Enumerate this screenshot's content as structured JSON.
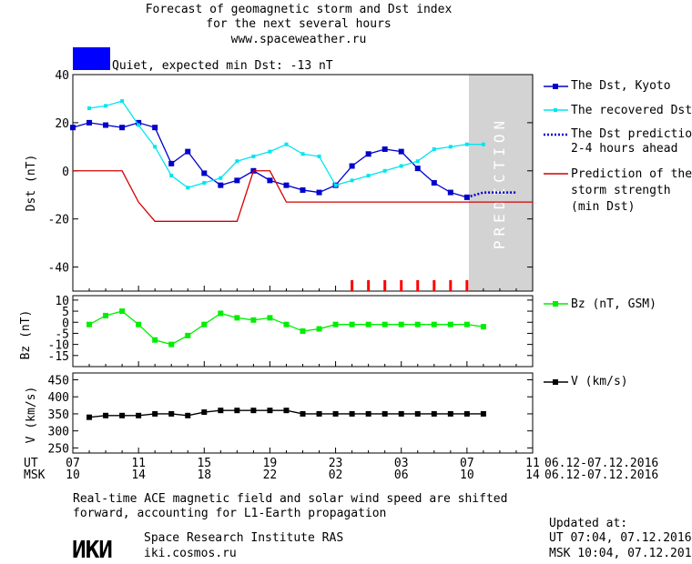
{
  "header": {
    "title_line1": "Forecast of geomagnetic storm and Dst index",
    "title_line2": "for the next several hours",
    "website": "www.spaceweather.ru"
  },
  "status": {
    "color": "#0000ff",
    "text": "Quiet, expected min Dst: -13 nT"
  },
  "prediction_label": "PREDICTION",
  "legend": {
    "dst_kyoto": "The Dst, Kyoto",
    "dst_recovered": "The recovered Dst",
    "dst_prediction_1": "The Dst prediction",
    "dst_prediction_2": "2-4 hours ahead",
    "storm_1": "Prediction of the",
    "storm_2": "storm strength",
    "storm_3": "(min Dst)",
    "bz": "Bz (nT, GSM)",
    "v": "V (km/s)"
  },
  "time_axis": {
    "ut_label": "UT",
    "msk_label": "MSK",
    "ut_ticks": [
      "07",
      "11",
      "15",
      "19",
      "23",
      "03",
      "07",
      "11"
    ],
    "msk_ticks": [
      "10",
      "14",
      "18",
      "22",
      "02",
      "06",
      "10",
      "14"
    ],
    "date_range_ut": "06.12-07.12.2016",
    "date_range_msk": "06.12-07.12.2016"
  },
  "footer": {
    "note_line1": "Real-time ACE magnetic field and solar wind speed are shifted",
    "note_line2": "forward, accounting for L1-Earth propagation",
    "logo_text": "ИКИ",
    "institute": "Space Research Institute RAS",
    "institute_url": "iki.cosmos.ru",
    "updated_label": "Updated at:",
    "updated_ut": "UT  07:04, 07.12.2016",
    "updated_msk": "MSK 10:04, 07.12.2016"
  },
  "chart_data": [
    {
      "type": "line",
      "title": "Forecast of geomagnetic storm and Dst index",
      "ylabel": "Dst (nT)",
      "xlim_hours": [
        0,
        28
      ],
      "ylim": [
        -50,
        40
      ],
      "yticks": [
        40,
        20,
        0,
        -20,
        -40
      ],
      "grid": false,
      "legend_position": "right",
      "prediction_from_hour": 24,
      "colors": {
        "kyoto": "#0000cc",
        "recovered": "#00e5ee",
        "prediction": "#0000cc",
        "storm": "#d40000",
        "marker": "#ff0000"
      },
      "series": [
        {
          "name": "The Dst, Kyoto",
          "x": [
            0,
            1,
            2,
            3,
            4,
            5,
            6,
            7,
            8,
            9,
            10,
            11,
            12,
            13,
            14,
            15,
            16,
            17,
            18,
            19,
            20,
            21,
            22,
            23,
            24
          ],
          "y": [
            18,
            20,
            19,
            18,
            20,
            18,
            3,
            8,
            -1,
            -6,
            -4,
            0,
            -4,
            -6,
            -8,
            -9,
            -6,
            2,
            7,
            9,
            8,
            1,
            -5,
            -9,
            -11
          ]
        },
        {
          "name": "The recovered Dst",
          "x": [
            1,
            2,
            3,
            4,
            5,
            6,
            7,
            8,
            9,
            10,
            11,
            12,
            13,
            14,
            15,
            16,
            17,
            18,
            19,
            20,
            21,
            22,
            23,
            24,
            25
          ],
          "y": [
            26,
            27,
            29,
            19,
            10,
            -2,
            -7,
            -5,
            -3,
            4,
            6,
            8,
            11,
            7,
            6,
            -6,
            -4,
            -2,
            0,
            2,
            4,
            9,
            10,
            11,
            11
          ]
        },
        {
          "name": "The Dst prediction 2-4 hours ahead",
          "x": [
            24,
            25,
            26,
            27
          ],
          "y": [
            -11,
            -9,
            -9,
            -9
          ]
        },
        {
          "name": "Prediction of the storm strength (min Dst)",
          "x": [
            0,
            3,
            4,
            5,
            10,
            11,
            12,
            13,
            28
          ],
          "y": [
            0,
            0,
            -13,
            -21,
            -21,
            0,
            0,
            -13,
            -13
          ]
        }
      ],
      "marker_hours": [
        17,
        18,
        19,
        20,
        21,
        22,
        23,
        24
      ]
    },
    {
      "type": "line",
      "ylabel": "Bz (nT)",
      "ylim": [
        -20,
        12
      ],
      "yticks": [
        10,
        5,
        0,
        -5,
        -10,
        -15
      ],
      "series": [
        {
          "name": "Bz (nT, GSM)",
          "x": [
            1,
            2,
            3,
            4,
            5,
            6,
            7,
            8,
            9,
            10,
            11,
            12,
            13,
            14,
            15,
            16,
            17,
            18,
            19,
            20,
            21,
            22,
            23,
            24,
            25
          ],
          "y": [
            -1,
            3,
            5,
            -1,
            -8,
            -10,
            -6,
            -1,
            4,
            2,
            1,
            2,
            -1,
            -4,
            -3,
            -1,
            -1,
            -1,
            -1,
            -1,
            -1,
            -1,
            -1,
            -1,
            -2
          ],
          "color": "#00ee00"
        }
      ]
    },
    {
      "type": "line",
      "ylabel": "V (km/s)",
      "ylim": [
        235,
        470
      ],
      "yticks": [
        450,
        400,
        350,
        300,
        250
      ],
      "series": [
        {
          "name": "V (km/s)",
          "x": [
            1,
            2,
            3,
            4,
            5,
            6,
            7,
            8,
            9,
            10,
            11,
            12,
            13,
            14,
            15,
            16,
            17,
            18,
            19,
            20,
            21,
            22,
            23,
            24,
            25
          ],
          "y": [
            340,
            345,
            345,
            345,
            350,
            350,
            345,
            355,
            360,
            360,
            360,
            360,
            360,
            350,
            350,
            350,
            350,
            350,
            350,
            350,
            350,
            350,
            350,
            350,
            350
          ],
          "color": "#000000"
        }
      ]
    }
  ]
}
